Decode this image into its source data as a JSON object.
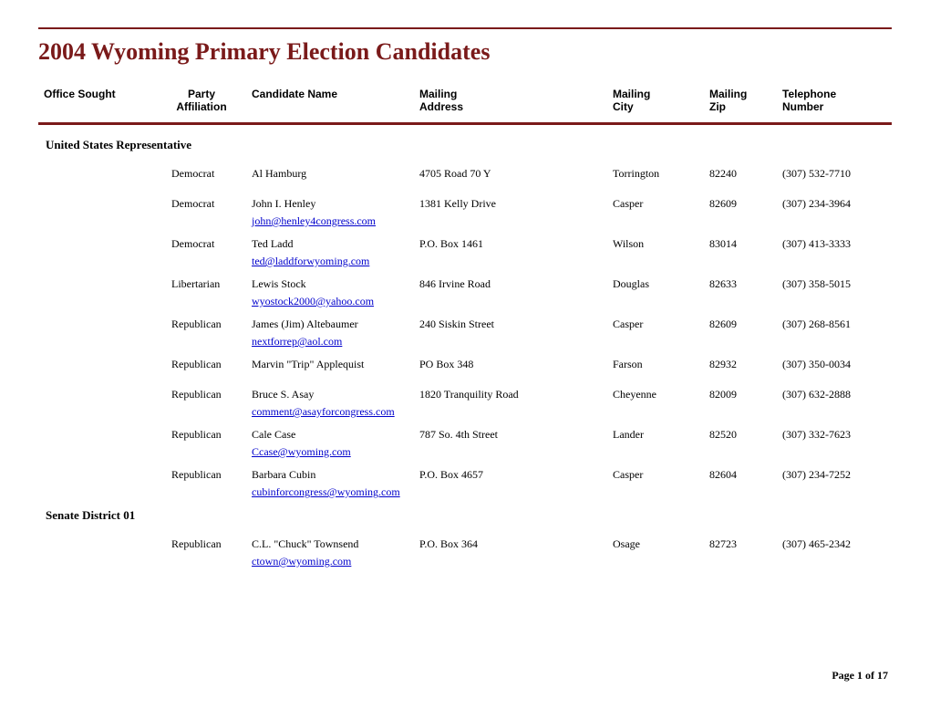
{
  "title": "2004 Wyoming Primary Election Candidates",
  "columns": {
    "office": "Office Sought",
    "party_line1": "Party",
    "party_line2": "Affiliation",
    "name": "Candidate Name",
    "addr_line1": "Mailing",
    "addr_line2": "Address",
    "city_line1": "Mailing",
    "city_line2": "City",
    "zip_line1": "Mailing",
    "zip_line2": "Zip",
    "tel_line1": "Telephone",
    "tel_line2": "Number"
  },
  "sections": [
    {
      "heading": "United States Representative",
      "rows": [
        {
          "party": "Democrat",
          "name": "Al Hamburg",
          "addr": "4705 Road 70 Y",
          "city": "Torrington",
          "zip": "82240",
          "tel": "(307) 532-7710",
          "email": ""
        },
        {
          "party": "Democrat",
          "name": "John I. Henley",
          "addr": "1381 Kelly Drive",
          "city": "Casper",
          "zip": "82609",
          "tel": "(307) 234-3964",
          "email": "john@henley4congress.com"
        },
        {
          "party": "Democrat",
          "name": "Ted Ladd",
          "addr": "P.O. Box 1461",
          "city": "Wilson",
          "zip": "83014",
          "tel": "(307) 413-3333",
          "email": "ted@laddforwyoming.com"
        },
        {
          "party": "Libertarian",
          "name": "Lewis Stock",
          "addr": "846 Irvine Road",
          "city": "Douglas",
          "zip": "82633",
          "tel": "(307) 358-5015",
          "email": "wyostock2000@yahoo.com"
        },
        {
          "party": "Republican",
          "name": "James (Jim) Altebaumer",
          "addr": "240 Siskin Street",
          "city": "Casper",
          "zip": "82609",
          "tel": "(307) 268-8561",
          "email": "nextforrep@aol.com"
        },
        {
          "party": "Republican",
          "name": "Marvin \"Trip\" Applequist",
          "addr": "PO Box 348",
          "city": "Farson",
          "zip": "82932",
          "tel": "(307) 350-0034",
          "email": ""
        },
        {
          "party": "Republican",
          "name": "Bruce S. Asay",
          "addr": "1820 Tranquility Road",
          "city": "Cheyenne",
          "zip": "82009",
          "tel": "(307) 632-2888",
          "email": "comment@asayforcongress.com"
        },
        {
          "party": "Republican",
          "name": "Cale Case",
          "addr": "787 So. 4th Street",
          "city": "Lander",
          "zip": "82520",
          "tel": "(307) 332-7623",
          "email": "Ccase@wyoming.com"
        },
        {
          "party": "Republican",
          "name": "Barbara Cubin",
          "addr": "P.O. Box 4657",
          "city": "Casper",
          "zip": "82604",
          "tel": "(307) 234-7252",
          "email": "cubinforcongress@wyoming.com"
        }
      ]
    },
    {
      "heading": "Senate District 01",
      "rows": [
        {
          "party": "Republican",
          "name": "C.L. \"Chuck\" Townsend",
          "addr": "P.O. Box 364",
          "city": "Osage",
          "zip": "82723",
          "tel": "(307) 465-2342",
          "email": "ctown@wyoming.com"
        }
      ]
    }
  ],
  "footer": "Page 1 of 17",
  "colors": {
    "accent": "#7a1a1a",
    "link": "#0000cc",
    "text": "#000000",
    "background": "#ffffff"
  }
}
